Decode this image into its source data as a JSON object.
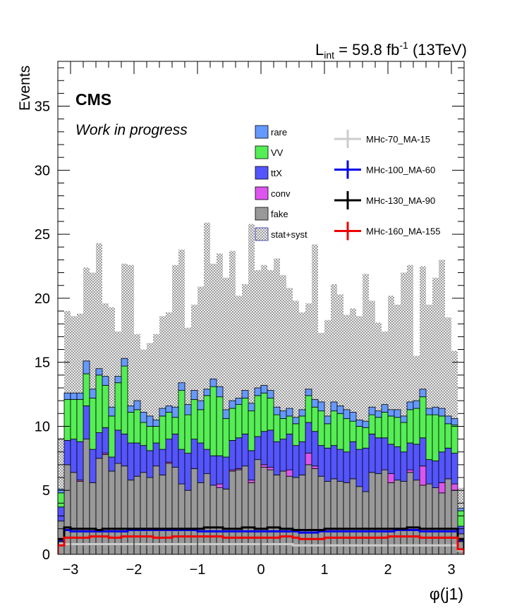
{
  "header": {
    "lumi_prefix": "L",
    "lumi_sub": "int",
    "lumi_mid": " = 59.8 fb",
    "lumi_sup": "-1",
    "lumi_suffix": " (13TeV)"
  },
  "labels": {
    "cms": "CMS",
    "work": "Work in progress"
  },
  "chart_data": {
    "type": "bar",
    "stacked": true,
    "xlabel": "φ(j1)",
    "ylabel": "Events",
    "xlim": [
      -3.2,
      3.2
    ],
    "ylim": [
      0,
      38.5
    ],
    "xticks": [
      -3,
      -2,
      -1,
      0,
      1,
      2,
      3
    ],
    "xtick_labels": [
      "−3",
      "−2",
      "−1",
      "0",
      "1",
      "2",
      "3"
    ],
    "yticks": [
      0,
      5,
      10,
      15,
      20,
      25,
      30,
      35
    ],
    "ytick_labels": [
      "0",
      "5",
      "10",
      "15",
      "20",
      "25",
      "30",
      "35"
    ],
    "bin_edges": [
      -3.2,
      3.2
    ],
    "n_bins": 64,
    "series": [
      {
        "name": "fake",
        "color": "#999999",
        "values": [
          2.6,
          7.0,
          6.4,
          5.7,
          9.0,
          5.6,
          7.5,
          7.8,
          6.5,
          7.1,
          6.9,
          5.8,
          6.1,
          6.4,
          6.0,
          6.9,
          6.2,
          7.1,
          6.8,
          5.5,
          5.0,
          6.7,
          5.6,
          6.3,
          5.4,
          5.2,
          5.1,
          6.5,
          6.6,
          6.9,
          5.6,
          7.4,
          6.8,
          6.6,
          6.2,
          6.5,
          6.1,
          6.0,
          6.2,
          7.0,
          6.7,
          6.1,
          5.7,
          5.9,
          5.7,
          5.6,
          5.9,
          5.3,
          4.9,
          6.4,
          6.3,
          6.6,
          5.6,
          5.8,
          5.7,
          6.4,
          5.8,
          5.4,
          5.5,
          5.2,
          4.8,
          5.9,
          5.0,
          1.6
        ]
      },
      {
        "name": "conv",
        "color": "#dd55ee",
        "values": [
          0,
          0,
          0,
          0.1,
          0,
          0,
          0,
          0.1,
          0,
          0,
          0,
          0,
          0,
          0,
          0,
          0,
          0,
          0.1,
          0,
          0,
          0,
          0,
          0,
          0,
          0,
          0.3,
          0,
          0.1,
          0.1,
          0,
          0.2,
          0,
          0.2,
          0.2,
          0,
          0,
          0.5,
          0,
          0,
          0.9,
          0.2,
          0,
          0,
          0,
          0,
          0,
          0,
          0,
          0,
          0,
          0,
          0,
          0.7,
          0,
          0,
          0.2,
          0,
          1.5,
          0,
          0,
          0.8,
          0,
          0.5,
          0
        ]
      },
      {
        "name": "ttX",
        "color": "#5555ff",
        "values": [
          1.1,
          1.9,
          2.6,
          3.0,
          2.6,
          2.6,
          2.0,
          2.0,
          1.1,
          2.6,
          2.5,
          2.9,
          2.6,
          2.1,
          2.1,
          1.8,
          2.0,
          1.8,
          2.6,
          2.7,
          2.9,
          2.3,
          3.1,
          1.9,
          2.3,
          2.2,
          2.5,
          2.3,
          2.4,
          2.5,
          2.3,
          1.8,
          2.6,
          2.9,
          2.6,
          2.5,
          2.8,
          2.5,
          2.6,
          2.4,
          2.7,
          2.4,
          2.6,
          2.6,
          2.5,
          2.4,
          2.9,
          2.9,
          3.4,
          3.0,
          2.8,
          2.5,
          2.3,
          2.6,
          2.3,
          2.1,
          2.8,
          2.2,
          1.9,
          2.1,
          2.4,
          2.4,
          2.4,
          0.6
        ]
      },
      {
        "name": "VV",
        "color": "#55ee55",
        "values": [
          1.1,
          3.2,
          3.1,
          3.3,
          2.5,
          4.0,
          4.5,
          3.3,
          3.2,
          3.7,
          5.3,
          2.4,
          2.6,
          1.8,
          1.9,
          1.3,
          2.6,
          2.1,
          1.3,
          4.6,
          3.0,
          3.1,
          2.6,
          4.2,
          5.4,
          4.6,
          3.0,
          2.5,
          2.6,
          2.8,
          3.1,
          3.2,
          3.0,
          2.5,
          2.1,
          1.6,
          1.4,
          1.7,
          2.0,
          2.1,
          1.9,
          2.7,
          1.9,
          2.7,
          2.8,
          2.6,
          1.6,
          1.8,
          1.6,
          1.5,
          1.6,
          2.0,
          2.2,
          2.3,
          2.3,
          2.6,
          2.8,
          3.2,
          3.5,
          3.6,
          2.8,
          1.9,
          2.2,
          1.2
        ]
      },
      {
        "name": "rare",
        "color": "#6699ff",
        "values": [
          0.3,
          0.5,
          0.5,
          0.5,
          1.0,
          0.7,
          0.5,
          0.7,
          0.7,
          0.5,
          0.6,
          0.5,
          0.7,
          0.8,
          0.8,
          0.5,
          0.6,
          0.5,
          0.8,
          0.6,
          0.8,
          0.7,
          0.7,
          0.5,
          0.6,
          0.8,
          0.7,
          0.6,
          0.5,
          0.6,
          0.6,
          0.6,
          0.6,
          0.6,
          0.6,
          0.6,
          0.6,
          0.5,
          0.5,
          0.5,
          0.6,
          0.7,
          0.6,
          0.7,
          0.6,
          0.7,
          0.7,
          0.5,
          0.5,
          0.6,
          0.5,
          0.6,
          0.5,
          0.6,
          0.5,
          0.6,
          0.6,
          0.6,
          0.5,
          0.6,
          0.6,
          0.6,
          0.5,
          0.2
        ]
      }
    ],
    "band": {
      "name": "stat+syst",
      "up": [
        9.1,
        19.0,
        18.6,
        18.8,
        22.4,
        22.0,
        24.3,
        19.6,
        19.3,
        17.4,
        22.7,
        22.6,
        17.2,
        16.0,
        16.5,
        17.2,
        18.6,
        18.9,
        22.6,
        23.8,
        17.7,
        19.5,
        20.9,
        25.9,
        22.7,
        23.5,
        21.6,
        23.7,
        20.2,
        21.1,
        25.8,
        22.2,
        22.6,
        22.2,
        23.1,
        21.8,
        20.8,
        19.8,
        18.9,
        19.6,
        24.2,
        17.3,
        18.3,
        21.1,
        20.3,
        18.7,
        19.2,
        18.6,
        21.9,
        19.8,
        18.1,
        17.4,
        20.2,
        19.5,
        22.0,
        22.6,
        15.5,
        22.5,
        19.5,
        21.6,
        23.0,
        18.5,
        15.9,
        5.2
      ],
      "down": [
        2.2,
        4.5,
        4.5,
        4.9,
        5.5,
        5.0,
        4.8,
        4.7,
        4.5,
        4.5,
        4.8,
        4.5,
        4.5,
        4.5,
        4.8,
        4.5,
        4.6,
        4.5,
        4.5,
        4.3,
        3.9,
        4.7,
        4.5,
        4.8,
        4.4,
        3.7,
        4.4,
        4.7,
        4.8,
        5.0,
        4.6,
        4.9,
        4.4,
        4.3,
        4.5,
        4.4,
        4.8,
        4.5,
        4.7,
        4.9,
        4.6,
        4.5,
        4.5,
        4.8,
        4.6,
        4.5,
        4.6,
        4.4,
        4.0,
        4.3,
        4.9,
        4.5,
        4.3,
        4.5,
        4.2,
        4.5,
        4.7,
        4.6,
        4.5,
        4.4,
        4.7,
        4.2,
        4.2,
        1.2
      ]
    },
    "signals": [
      {
        "name": "MHc-70_MA-15",
        "color": "#cccccc",
        "values": [
          0.8,
          0.8,
          0.8,
          0.8,
          0.8,
          0.8,
          0.8,
          0.8,
          0.8,
          0.8,
          0.8,
          0.8,
          0.8,
          0.8,
          0.8,
          0.8,
          0.8,
          0.8,
          0.8,
          0.8,
          0.8,
          0.8,
          0.8,
          0.8,
          0.8,
          0.8,
          0.8,
          0.8,
          0.8,
          0.8,
          0.8,
          0.8,
          0.8,
          0.8,
          0.8,
          0.8,
          0.8,
          0.7,
          0.7,
          0.7,
          0.7,
          0.7,
          0.7,
          0.7,
          0.7,
          0.7,
          0.7,
          0.7,
          0.7,
          0.7,
          0.7,
          0.7,
          0.7,
          0.7,
          0.7,
          0.7,
          0.7,
          0.7,
          0.7,
          0.7,
          0.7,
          0.7,
          0.7,
          0.3
        ]
      },
      {
        "name": "MHc-100_MA-60",
        "color": "#0000ee",
        "values": [
          1.1,
          1.9,
          1.8,
          1.8,
          1.8,
          1.8,
          1.8,
          1.8,
          1.8,
          1.8,
          1.8,
          1.9,
          1.9,
          1.9,
          1.9,
          1.9,
          1.9,
          1.9,
          1.9,
          1.9,
          1.9,
          1.9,
          1.8,
          1.8,
          1.8,
          1.8,
          1.8,
          1.8,
          1.8,
          1.8,
          1.8,
          1.8,
          1.8,
          1.8,
          1.8,
          1.8,
          1.8,
          1.8,
          1.7,
          1.7,
          1.7,
          1.8,
          1.8,
          1.8,
          1.8,
          1.8,
          1.8,
          1.8,
          1.8,
          1.8,
          1.8,
          1.8,
          1.8,
          1.9,
          1.9,
          1.9,
          1.9,
          1.8,
          1.8,
          1.8,
          1.8,
          1.8,
          1.8,
          1.1
        ]
      },
      {
        "name": "MHc-130_MA-90",
        "color": "#000000",
        "values": [
          1.2,
          2.1,
          2.0,
          2.0,
          2.0,
          2.0,
          1.9,
          2.0,
          2.0,
          2.0,
          2.0,
          2.0,
          2.0,
          2.0,
          2.0,
          2.0,
          2.0,
          2.0,
          2.0,
          2.0,
          2.0,
          2.0,
          2.0,
          2.1,
          2.1,
          2.1,
          2.0,
          2.0,
          2.0,
          2.1,
          2.1,
          2.0,
          2.0,
          2.1,
          2.1,
          2.0,
          2.0,
          1.9,
          1.9,
          1.9,
          1.9,
          1.9,
          2.0,
          2.0,
          2.0,
          2.0,
          2.0,
          2.0,
          2.0,
          2.0,
          2.0,
          2.0,
          2.0,
          2.0,
          2.0,
          2.1,
          2.1,
          2.0,
          2.0,
          2.0,
          2.0,
          2.0,
          2.0,
          1.2
        ]
      },
      {
        "name": "MHc-160_MA-155",
        "color": "#ee0000",
        "values": [
          0.7,
          1.3,
          1.3,
          1.3,
          1.3,
          1.4,
          1.4,
          1.4,
          1.3,
          1.3,
          1.4,
          1.4,
          1.4,
          1.4,
          1.4,
          1.3,
          1.3,
          1.3,
          1.4,
          1.4,
          1.4,
          1.4,
          1.4,
          1.4,
          1.4,
          1.4,
          1.3,
          1.3,
          1.3,
          1.3,
          1.3,
          1.3,
          1.3,
          1.3,
          1.3,
          1.4,
          1.4,
          1.3,
          1.2,
          1.2,
          1.2,
          1.2,
          1.3,
          1.3,
          1.3,
          1.3,
          1.3,
          1.3,
          1.3,
          1.3,
          1.3,
          1.3,
          1.4,
          1.4,
          1.4,
          1.4,
          1.4,
          1.3,
          1.3,
          1.3,
          1.3,
          1.3,
          1.3,
          0.4
        ]
      }
    ],
    "legend": {
      "placement": "top-center",
      "left_entries": [
        "rare",
        "VV",
        "ttX",
        "conv",
        "fake",
        "stat+syst"
      ],
      "right_entries": [
        "MHc-70_MA-15",
        "MHc-100_MA-60",
        "MHc-130_MA-90",
        "MHc-160_MA-155"
      ]
    }
  }
}
